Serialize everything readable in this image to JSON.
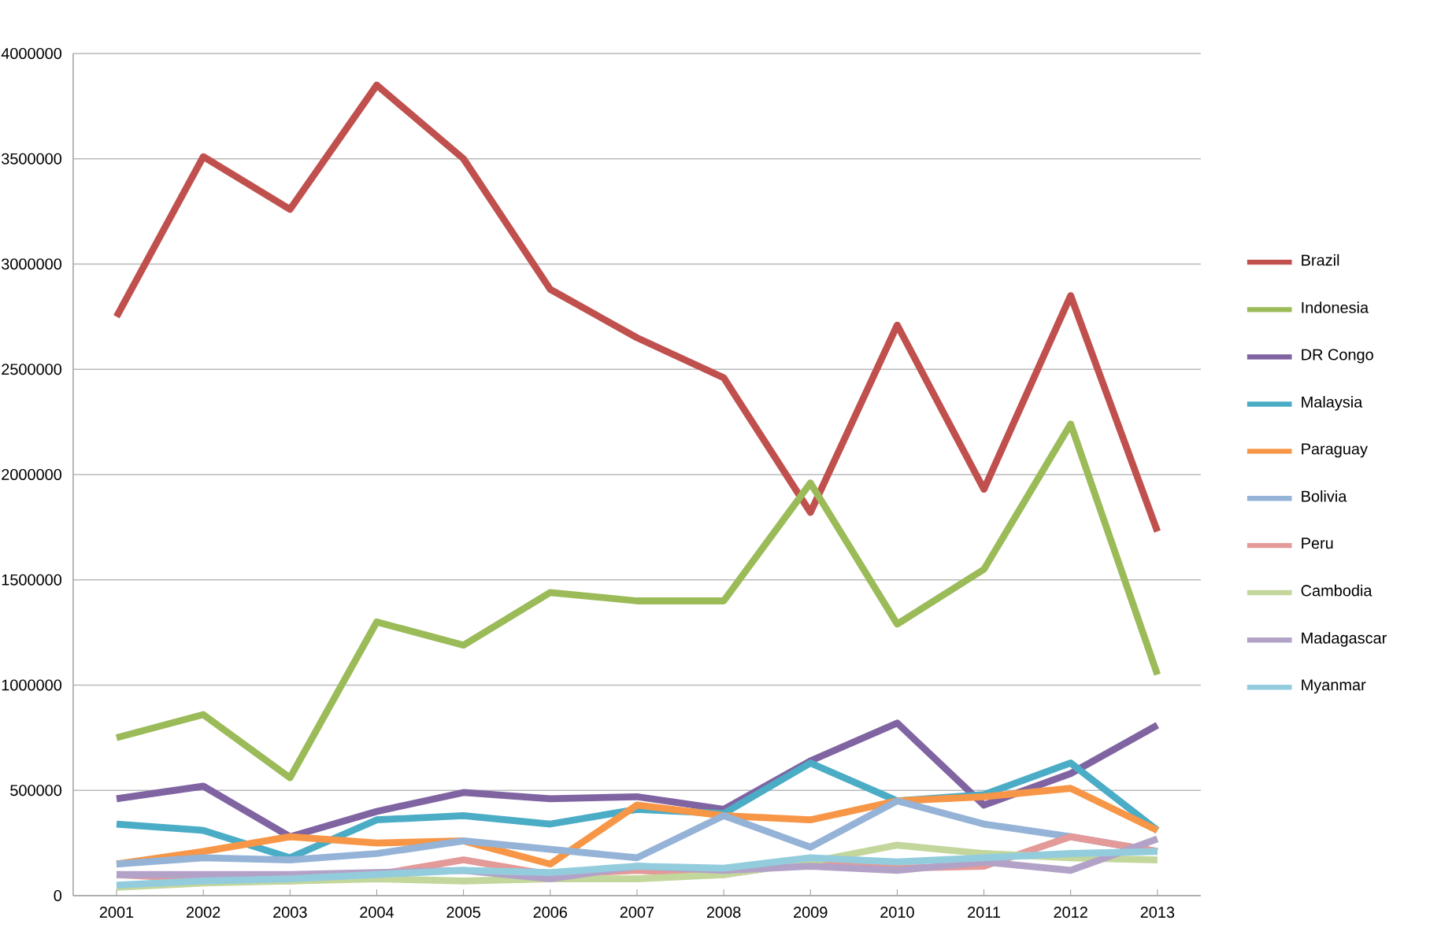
{
  "chart_data": {
    "type": "line",
    "categories": [
      "2001",
      "2002",
      "2003",
      "2004",
      "2005",
      "2006",
      "2007",
      "2008",
      "2009",
      "2010",
      "2011",
      "2012",
      "2013"
    ],
    "ylim": [
      0,
      4000000
    ],
    "yticks": [
      0,
      500000,
      1000000,
      1500000,
      2000000,
      2500000,
      3000000,
      3500000,
      4000000
    ],
    "grid": "y",
    "legend": "right",
    "marker": "none",
    "line_style": "solid",
    "series": [
      {
        "name": "Brazil",
        "color": "#c0504d",
        "values": [
          2750000,
          3510000,
          3260000,
          3850000,
          3500000,
          2880000,
          2650000,
          2460000,
          1820000,
          2710000,
          1930000,
          2850000,
          1730000
        ]
      },
      {
        "name": "Indonesia",
        "color": "#9bbb59",
        "values": [
          750000,
          860000,
          560000,
          1300000,
          1190000,
          1440000,
          1400000,
          1400000,
          1960000,
          1290000,
          1550000,
          2240000,
          1050000
        ]
      },
      {
        "name": "DR Congo",
        "color": "#8064a2",
        "values": [
          460000,
          520000,
          280000,
          400000,
          490000,
          460000,
          470000,
          410000,
          640000,
          820000,
          430000,
          580000,
          810000
        ]
      },
      {
        "name": "Malaysia",
        "color": "#4bacc6",
        "values": [
          340000,
          310000,
          180000,
          360000,
          380000,
          340000,
          410000,
          390000,
          630000,
          450000,
          480000,
          630000,
          310000
        ]
      },
      {
        "name": "Paraguay",
        "color": "#f79646",
        "values": [
          150000,
          210000,
          280000,
          250000,
          260000,
          150000,
          430000,
          380000,
          360000,
          450000,
          470000,
          510000,
          310000
        ]
      },
      {
        "name": "Bolivia",
        "color": "#95b3d7",
        "values": [
          150000,
          180000,
          170000,
          200000,
          260000,
          220000,
          180000,
          380000,
          230000,
          450000,
          340000,
          280000,
          210000
        ]
      },
      {
        "name": "Peru",
        "color": "#e39a98",
        "values": [
          100000,
          80000,
          70000,
          100000,
          170000,
          100000,
          120000,
          100000,
          160000,
          130000,
          140000,
          280000,
          210000
        ]
      },
      {
        "name": "Cambodia",
        "color": "#c3d69b",
        "values": [
          40000,
          60000,
          70000,
          80000,
          70000,
          80000,
          80000,
          100000,
          160000,
          240000,
          200000,
          180000,
          170000
        ]
      },
      {
        "name": "Madagascar",
        "color": "#b3a2c7",
        "values": [
          100000,
          100000,
          100000,
          110000,
          120000,
          80000,
          140000,
          120000,
          140000,
          120000,
          160000,
          120000,
          270000
        ]
      },
      {
        "name": "Myanmar",
        "color": "#93cddd",
        "values": [
          50000,
          70000,
          80000,
          100000,
          120000,
          110000,
          140000,
          130000,
          180000,
          160000,
          180000,
          200000,
          210000
        ]
      }
    ]
  }
}
